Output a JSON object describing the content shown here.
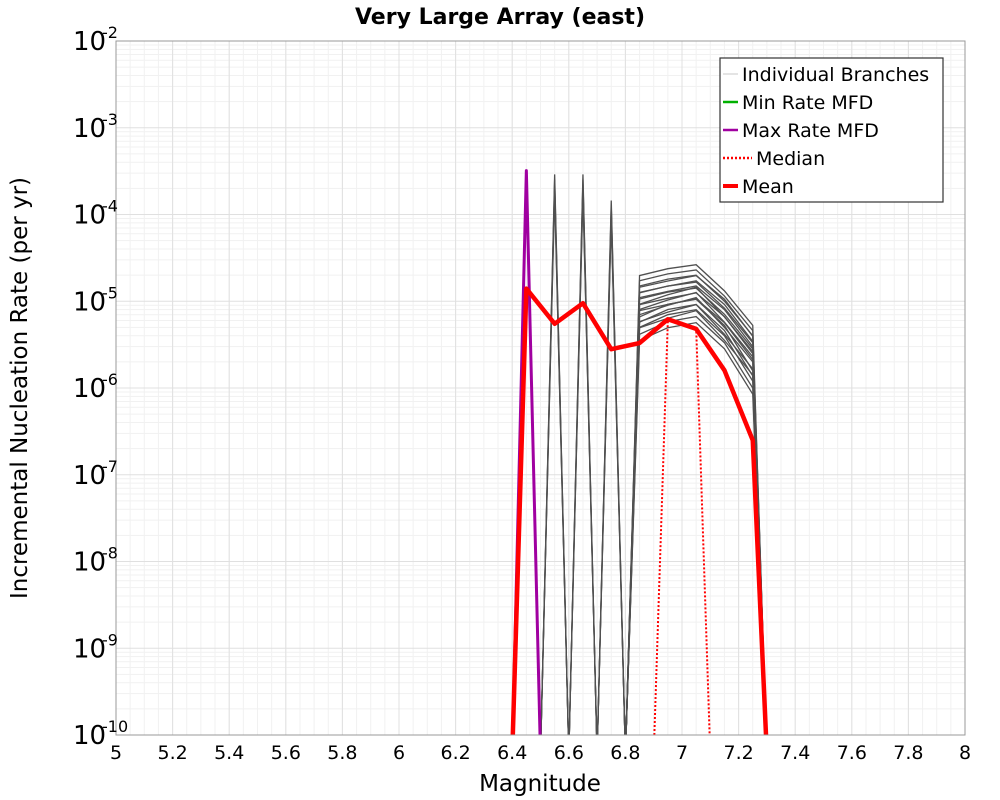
{
  "chart_data": {
    "type": "line",
    "title": "Very Large Array (east)",
    "xlabel": "Magnitude",
    "ylabel": "Incremental Nucleation Rate (per yr)",
    "xlim": [
      5,
      8
    ],
    "ylim": [
      1e-10,
      0.01
    ],
    "yscale": "log",
    "grid": true,
    "legend_position": "top-right",
    "x_ticks": [
      "5",
      "5.2",
      "5.4",
      "5.6",
      "5.8",
      "6",
      "6.2",
      "6.4",
      "6.6",
      "6.8",
      "7",
      "7.2",
      "7.4",
      "7.6",
      "7.8",
      "8"
    ],
    "y_ticks": [
      {
        "base": "10",
        "exp": "-2",
        "value": 0.01
      },
      {
        "base": "10",
        "exp": "-3",
        "value": 0.001
      },
      {
        "base": "10",
        "exp": "-4",
        "value": 0.0001
      },
      {
        "base": "10",
        "exp": "-5",
        "value": 1e-05
      },
      {
        "base": "10",
        "exp": "-6",
        "value": 1e-06
      },
      {
        "base": "10",
        "exp": "-7",
        "value": 1e-07
      },
      {
        "base": "10",
        "exp": "-8",
        "value": 1e-08
      },
      {
        "base": "10",
        "exp": "-9",
        "value": 1e-09
      },
      {
        "base": "10",
        "exp": "-10",
        "value": 1e-10
      }
    ],
    "legend": [
      {
        "label": "Individual Branches",
        "color": "#c8c8c8",
        "style": "thin"
      },
      {
        "label": "Min Rate MFD",
        "color": "#00b000",
        "style": "solid"
      },
      {
        "label": "Max Rate MFD",
        "color": "#a000a0",
        "style": "solid"
      },
      {
        "label": "Median",
        "color": "#ff0000",
        "style": "dotted"
      },
      {
        "label": "Mean",
        "color": "#ff0000",
        "style": "thick"
      }
    ],
    "branch_color": "#505050",
    "branch_groups": [
      {
        "x": [
          6.55
        ],
        "values": [
          0.00022
        ]
      },
      {
        "x": [
          6.65
        ],
        "values": [
          0.00022
        ]
      },
      {
        "x": [
          6.75
        ],
        "values": [
          0.00011
        ]
      },
      {
        "x": [
          6.85,
          6.95,
          7.05,
          7.15,
          7.25
        ],
        "values": [
          1.5e-05,
          1.8e-05,
          2e-05,
          1e-05,
          4e-06
        ]
      },
      {
        "x": [
          6.85,
          6.95,
          7.05,
          7.15,
          7.25
        ],
        "values": [
          1.1e-05,
          1.3e-05,
          1.5e-05,
          8e-06,
          3e-06
        ]
      },
      {
        "x": [
          6.85,
          6.95,
          7.05,
          7.15,
          7.25
        ],
        "values": [
          7e-06,
          9e-06,
          1.1e-05,
          5e-06,
          2e-06
        ]
      },
      {
        "x": [
          6.85,
          6.95,
          7.05,
          7.15,
          7.25
        ],
        "values": [
          5e-06,
          7e-06,
          8e-06,
          4e-06,
          1.2e-06
        ]
      }
    ],
    "series": [
      {
        "name": "Max Rate MFD",
        "color": "#a000a0",
        "x": [
          6.45
        ],
        "values": [
          0.00032
        ]
      },
      {
        "name": "Median",
        "color": "#ff0000",
        "x": [
          6.95,
          7.05
        ],
        "values": [
          6e-06,
          5e-06
        ]
      },
      {
        "name": "Mean",
        "color": "#ff0000",
        "x": [
          6.45,
          6.55,
          6.65,
          6.75,
          6.85,
          6.95,
          7.05,
          7.15,
          7.25
        ],
        "values": [
          1.4e-05,
          5.5e-06,
          9.5e-06,
          2.8e-06,
          3.3e-06,
          6.2e-06,
          4.8e-06,
          1.6e-06,
          2.5e-07
        ]
      }
    ]
  }
}
